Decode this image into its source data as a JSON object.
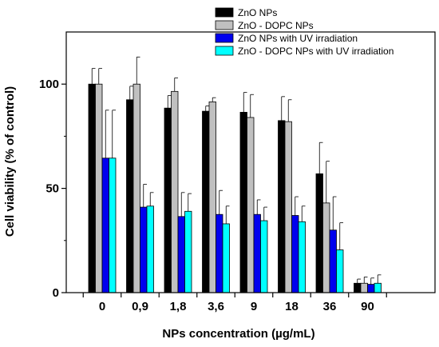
{
  "chart_data": {
    "type": "bar",
    "xlabel": "NPs concentration (µg/mL)",
    "ylabel": "Cell viability (% of control)",
    "ylim": [
      0,
      125
    ],
    "yticks": [
      0,
      50,
      100
    ],
    "grid": false,
    "legend_position": "top-right",
    "categories": [
      "0",
      "0,9",
      "1,8",
      "3,6",
      "9",
      "18",
      "36",
      "90"
    ],
    "series": [
      {
        "name": "ZnO NPs",
        "color": "#000000",
        "values": [
          100,
          92.5,
          88.5,
          87,
          86.5,
          82.5,
          57,
          4.5
        ],
        "errors": [
          7.5,
          6.5,
          6,
          2.5,
          9.5,
          11.5,
          15,
          2
        ]
      },
      {
        "name": "ZnO - DOPC NPs",
        "color": "#c0c0c0",
        "values": [
          100,
          100,
          96.5,
          91.5,
          84,
          82,
          43,
          4.5
        ],
        "errors": [
          7.5,
          13,
          6.5,
          2,
          11,
          10.5,
          20,
          3
        ]
      },
      {
        "name": "ZnO NPs with UV irradiation",
        "color": "#0000ee",
        "values": [
          64.5,
          41,
          36.5,
          37.5,
          37.5,
          37,
          30,
          4
        ],
        "errors": [
          23,
          11,
          11.5,
          11.5,
          7,
          9,
          16,
          3
        ]
      },
      {
        "name": "ZnO - DOPC NPs with UV irradiation",
        "color": "#00ffff",
        "values": [
          64.5,
          41.5,
          39,
          33,
          34.5,
          34,
          20.5,
          4.5
        ],
        "errors": [
          23,
          6.5,
          8.5,
          8.5,
          6.5,
          7.5,
          13,
          4
        ]
      }
    ]
  }
}
